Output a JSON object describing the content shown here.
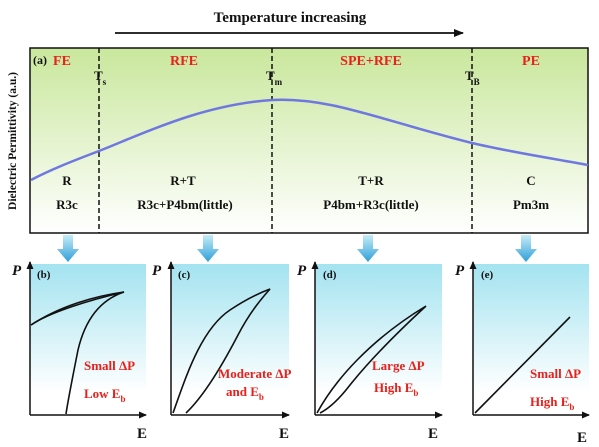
{
  "header": {
    "title": "Temperature increasing"
  },
  "panel_a": {
    "label": "(a)",
    "y_axis_label": "Dielectric Permittivity (a.u.)",
    "phases": [
      "FE",
      "RFE",
      "SPE+RFE",
      "PE"
    ],
    "transitions": [
      {
        "main": "T",
        "sub": "s"
      },
      {
        "main": "T",
        "sub": "m"
      },
      {
        "main": "T",
        "sub": "B"
      }
    ],
    "structures": [
      {
        "line1": "R",
        "line2": "R3c"
      },
      {
        "line1": "R+T",
        "line2": "R3c+P4bm(little)"
      },
      {
        "line1": "T+R",
        "line2": "P4bm+R3c(little)"
      },
      {
        "line1": "C",
        "line2": "Pm3m"
      }
    ],
    "colors": {
      "gradient_top": "#cfe9a6",
      "gradient_bottom": "#ffffff",
      "curve": "#6f77e0",
      "phase_text": "#e8211c"
    }
  },
  "loops": [
    {
      "label": "(b)",
      "x_axis": "E",
      "y_axis": "P",
      "note_line1": "Small ΔP",
      "note_line2_main": "Low E",
      "note_line2_sub": "b"
    },
    {
      "label": "(c)",
      "x_axis": "E",
      "y_axis": "P",
      "note_line1": "Moderate ΔP",
      "note_line2_main": "and E",
      "note_line2_sub": "b"
    },
    {
      "label": "(d)",
      "x_axis": "E",
      "y_axis": "P",
      "note_line1": "Large ΔP",
      "note_line2_main": "High E",
      "note_line2_sub": "b"
    },
    {
      "label": "(e)",
      "x_axis": "E",
      "y_axis": "P",
      "note_line1": "Small ΔP",
      "note_line2_main": "High E",
      "note_line2_sub": "b"
    }
  ],
  "loop_colors": {
    "gradient_top": "#a9e6f2",
    "gradient_bottom": "#ffffff",
    "arrow": "#3ba8dd"
  }
}
